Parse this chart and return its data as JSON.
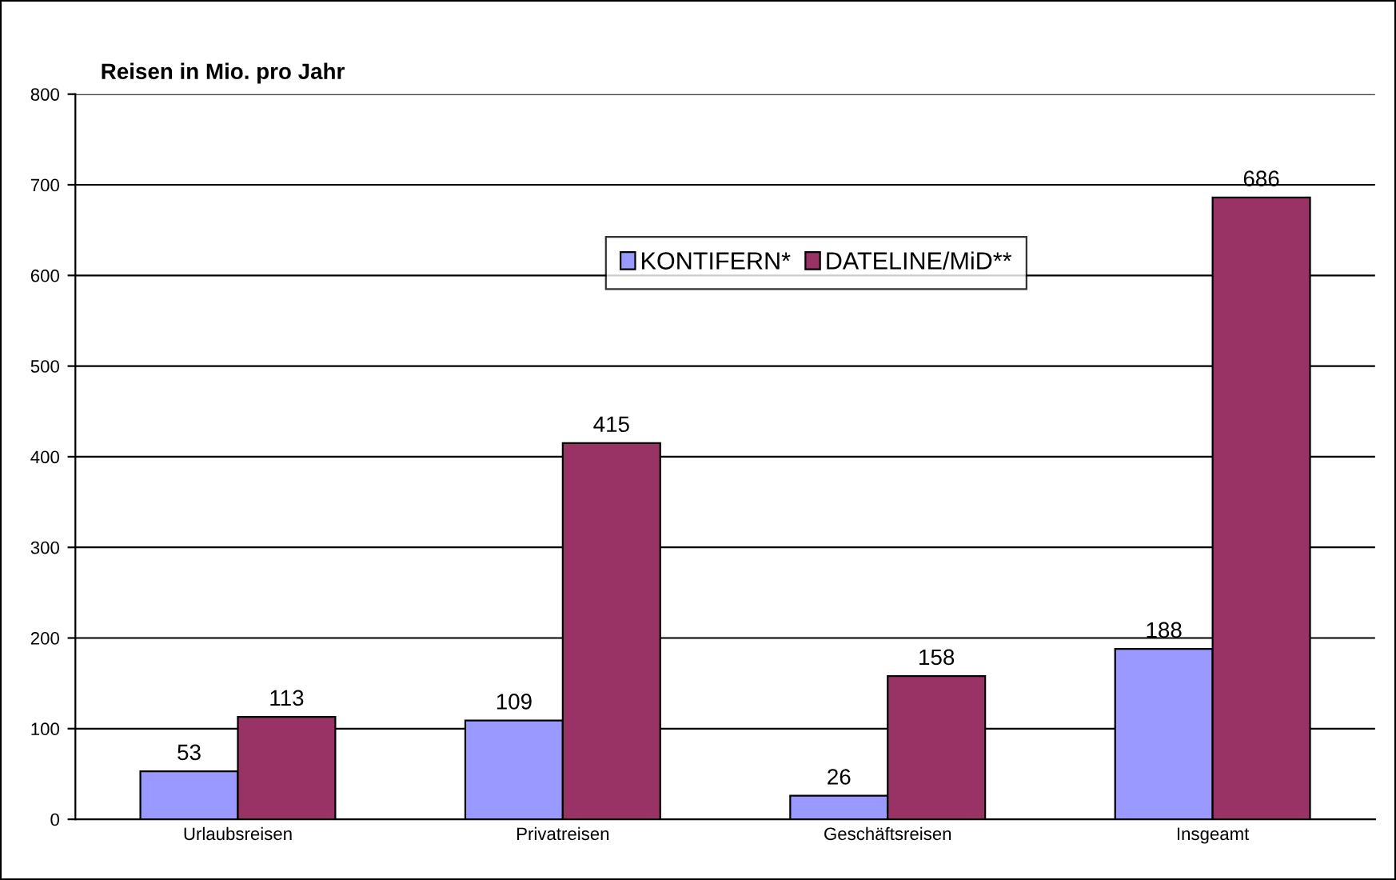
{
  "chart_data": {
    "type": "bar",
    "title": "Reisen in Mio. pro Jahr",
    "categories": [
      "Urlaubsreisen",
      "Privatreisen",
      "Geschäftsreisen",
      "Insgeamt"
    ],
    "series": [
      {
        "name": "KONTIFERN*",
        "color": "#9999ff",
        "values": [
          53,
          109,
          26,
          188
        ]
      },
      {
        "name": "DATELINE/MiD**",
        "color": "#993366",
        "values": [
          113,
          415,
          158,
          686
        ]
      }
    ],
    "ylim": [
      0,
      800
    ],
    "yticks": [
      0,
      100,
      200,
      300,
      400,
      500,
      600,
      700,
      800
    ],
    "grid": "y",
    "legend": "top",
    "data_labels": true
  }
}
